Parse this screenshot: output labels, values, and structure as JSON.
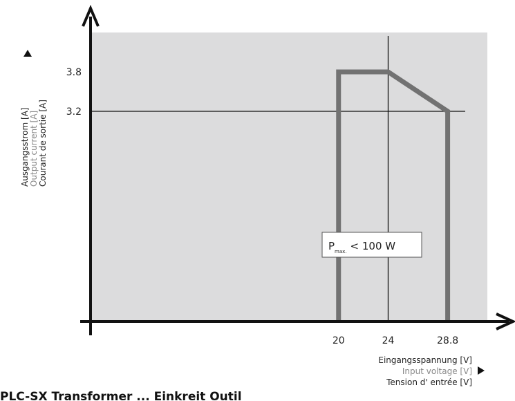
{
  "chart_data": {
    "type": "line",
    "title": "",
    "x_axis": {
      "labels": [
        "Eingangsspannung [V]",
        "Input voltage [V]",
        "Tension d' entrée [V]"
      ],
      "ticks": [
        20,
        24,
        28.8
      ],
      "tick_labels": [
        "20",
        "24",
        "28.8"
      ],
      "range": [
        0,
        32
      ]
    },
    "y_axis": {
      "labels": [
        "Ausgangsstrom [A]",
        "Output current [A]",
        "Courant de sortie [A]"
      ],
      "ticks": [
        3.2,
        3.8
      ],
      "tick_labels": [
        "3.2",
        "3.8"
      ],
      "range": [
        0,
        4.4
      ]
    },
    "series": [
      {
        "x": [
          20,
          20,
          24,
          28.8,
          28.8
        ],
        "y": [
          0,
          3.8,
          3.8,
          3.2,
          0
        ]
      }
    ],
    "annotation": {
      "main": "P",
      "subscript": "max.",
      "rest": "< 100 W"
    },
    "grid": "reference lines at x=24 and y=3.2",
    "colors": {
      "plot_background": "#dcdcdd",
      "curve": "#727272",
      "axes": "#111111",
      "label_primary": "#222222",
      "label_secondary": "#888888"
    }
  },
  "footer_text": "PLC-SX Transformer ... Einkreit Outil"
}
